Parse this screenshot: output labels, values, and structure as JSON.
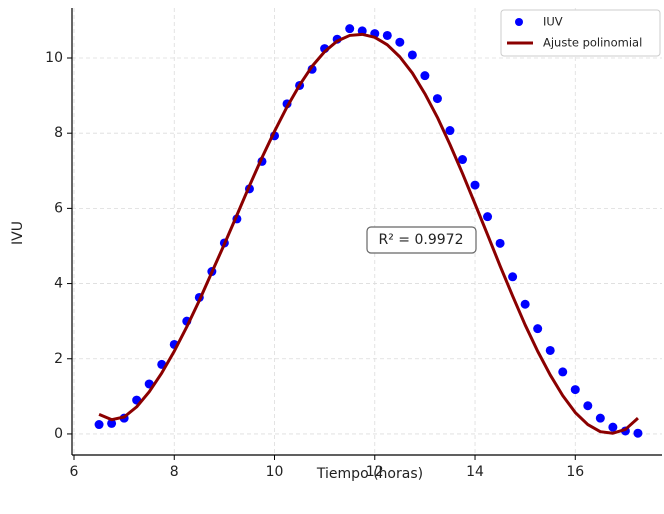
{
  "chart_data": {
    "type": "scatter",
    "xlabel": "Tiempo (horas)",
    "ylabel": "IVU",
    "x": [
      6.5,
      6.75,
      7.0,
      7.25,
      7.5,
      7.75,
      8.0,
      8.25,
      8.5,
      8.75,
      9.0,
      9.25,
      9.5,
      9.75,
      10.0,
      10.25,
      10.5,
      10.75,
      11.0,
      11.25,
      11.5,
      11.75,
      12.0,
      12.25,
      12.5,
      12.75,
      13.0,
      13.25,
      13.5,
      13.75,
      14.0,
      14.25,
      14.5,
      14.75,
      15.0,
      15.25,
      15.5,
      15.75,
      16.0,
      16.25,
      16.5,
      16.75,
      17.0,
      17.25
    ],
    "series": [
      {
        "name": "IUV",
        "type": "scatter",
        "color": "#0000ff",
        "values": [
          0.25,
          0.28,
          0.42,
          0.9,
          1.33,
          1.85,
          2.38,
          3.0,
          3.63,
          4.32,
          5.08,
          5.72,
          6.52,
          7.25,
          7.93,
          8.78,
          9.27,
          9.7,
          10.25,
          10.5,
          10.78,
          10.72,
          10.65,
          10.6,
          10.42,
          10.08,
          9.53,
          8.92,
          8.07,
          7.3,
          6.62,
          5.78,
          5.07,
          4.18,
          3.45,
          2.8,
          2.22,
          1.65,
          1.18,
          0.75,
          0.42,
          0.18,
          0.08,
          0.02
        ]
      },
      {
        "name": "Ajuste polinomial",
        "type": "line",
        "color": "#8b0000",
        "values": [
          0.52,
          0.38,
          0.45,
          0.72,
          1.12,
          1.62,
          2.2,
          2.85,
          3.55,
          4.3,
          5.05,
          5.82,
          6.6,
          7.35,
          8.05,
          8.7,
          9.28,
          9.78,
          10.17,
          10.45,
          10.6,
          10.63,
          10.55,
          10.35,
          10.03,
          9.6,
          9.05,
          8.42,
          7.7,
          6.93,
          6.12,
          5.3,
          4.47,
          3.67,
          2.9,
          2.2,
          1.57,
          1.02,
          0.57,
          0.25,
          0.06,
          0.02,
          0.12,
          0.42
        ]
      }
    ],
    "annotation": "R² = 0.9972",
    "xlim": [
      5.96,
      17.73
    ],
    "ylim": [
      -0.56,
      11.33
    ],
    "xticks": [
      6,
      8,
      10,
      12,
      14,
      16
    ],
    "yticks": [
      0,
      2,
      4,
      6,
      8,
      10
    ],
    "grid": true,
    "legend": "upper right"
  }
}
